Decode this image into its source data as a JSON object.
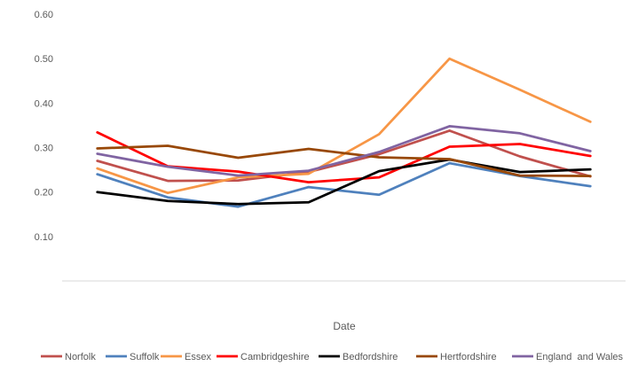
{
  "chart_data": {
    "type": "line",
    "title": "",
    "xlabel": "Date",
    "ylabel": "",
    "ylim": [
      0.0,
      0.6
    ],
    "y_ticks": [
      "0.60",
      "0.50",
      "0.40",
      "0.30",
      "0.20",
      "0.10"
    ],
    "y_tick_values": [
      0.6,
      0.5,
      0.4,
      0.3,
      0.2,
      0.1
    ],
    "grid": false,
    "legend_position": "bottom",
    "x": [
      1,
      2,
      3,
      4,
      5,
      6,
      7,
      8
    ],
    "series": [
      {
        "name": "Norfolk",
        "color": "#C0504D",
        "values": [
          0.27,
          0.225,
          0.226,
          0.245,
          0.285,
          0.338,
          0.28,
          0.235
        ]
      },
      {
        "name": "Suffolk",
        "color": "#4F81BD",
        "values": [
          0.24,
          0.188,
          0.167,
          0.211,
          0.194,
          0.265,
          0.236,
          0.213
        ]
      },
      {
        "name": "Essex",
        "color": "#F79646",
        "values": [
          0.253,
          0.198,
          0.233,
          0.241,
          0.33,
          0.5,
          0.43,
          0.358
        ]
      },
      {
        "name": "Cambridgeshire",
        "color": "#FF0000",
        "values": [
          0.334,
          0.258,
          0.246,
          0.222,
          0.233,
          0.302,
          0.308,
          0.281
        ]
      },
      {
        "name": "Bedfordshire",
        "color": "#000000",
        "values": [
          0.2,
          0.18,
          0.173,
          0.177,
          0.247,
          0.273,
          0.245,
          0.251
        ]
      },
      {
        "name": "Hertfordshire",
        "color": "#984807",
        "values": [
          0.298,
          0.304,
          0.277,
          0.297,
          0.278,
          0.274,
          0.237,
          0.236
        ]
      },
      {
        "name": "England  and Wales",
        "color": "#8064A2",
        "values": [
          0.286,
          0.257,
          0.237,
          0.248,
          0.29,
          0.348,
          0.332,
          0.292
        ]
      }
    ]
  }
}
